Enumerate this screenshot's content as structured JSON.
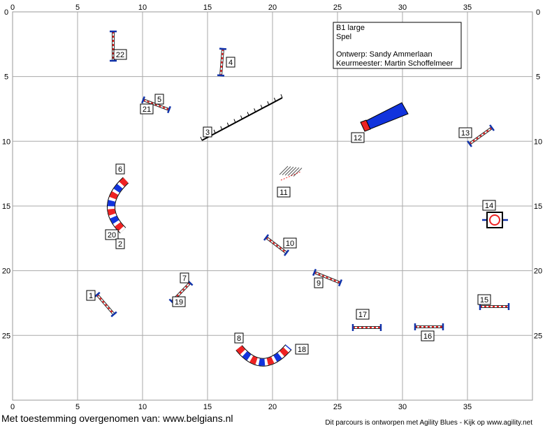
{
  "x_ticks": [
    0,
    5,
    10,
    15,
    20,
    25,
    30,
    35
  ],
  "y_ticks": [
    0,
    5,
    10,
    15,
    20,
    25
  ],
  "info": {
    "class": "B1 large",
    "type": "Spel",
    "design": "Ontwerp: Sandy Ammerlaan",
    "judge": "Keurmeester: Martin Schoffelmeer"
  },
  "labels": [
    "22",
    "4",
    "5",
    "21",
    "3",
    "12",
    "13",
    "6",
    "11",
    "14",
    "20",
    "2",
    "10",
    "7",
    "9",
    "1",
    "19",
    "15",
    "17",
    "16",
    "8",
    "18"
  ],
  "footer": {
    "credit": "Met toestemming overgenomen van: www.belgians.nl",
    "software": "Dit parcours is ontworpen met Agility Blues - Kijk op www.agility.net"
  }
}
